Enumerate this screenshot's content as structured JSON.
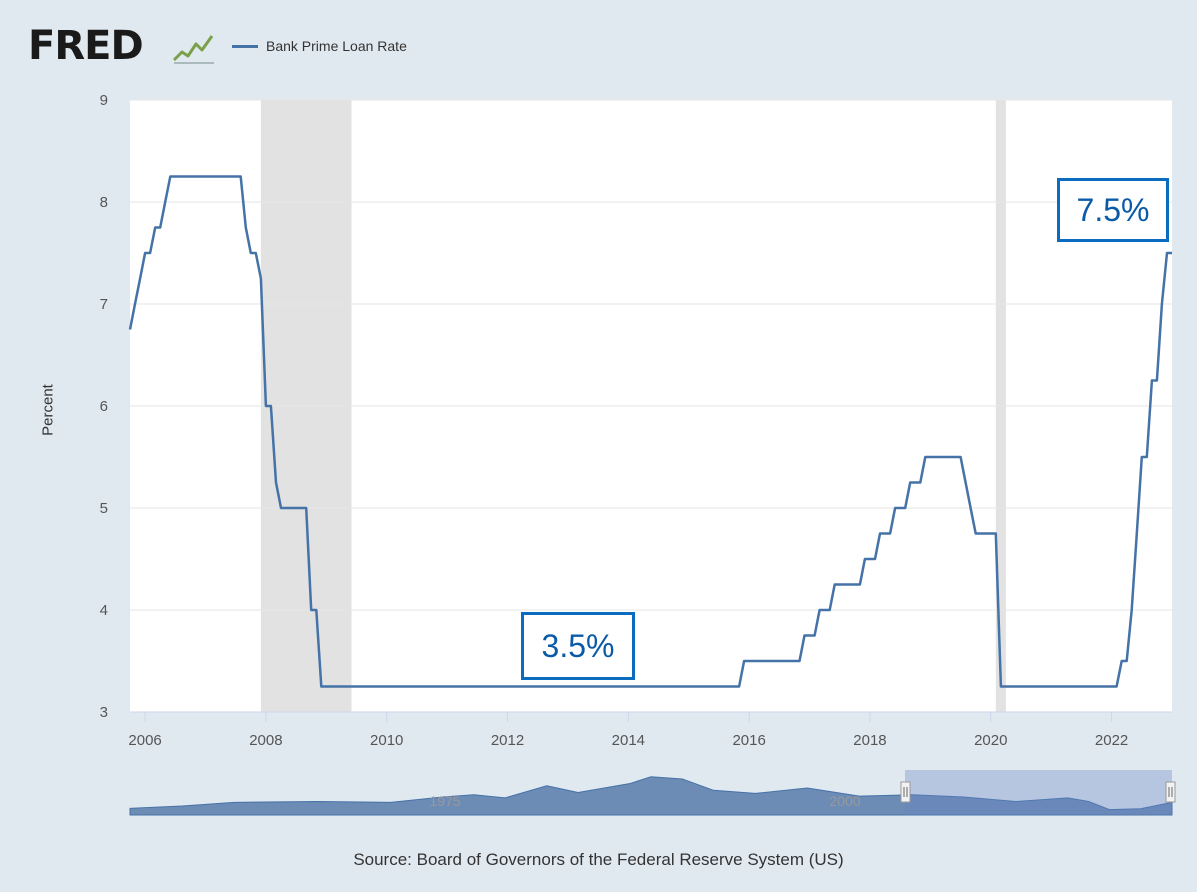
{
  "header": {
    "logo_text": "FRED",
    "logo_icon": "fred-trend-graph-icon",
    "legend_label": "Bank Prime Loan Rate",
    "legend_color": "#4572a7"
  },
  "source": "Source: Board of Governors of the Federal Reserve System (US)",
  "callouts": {
    "low": "3.5%",
    "high": "7.5%",
    "border_color": "#0b6cbf"
  },
  "navigator": {
    "labels": [
      "1975",
      "2000"
    ],
    "selected_range": [
      "2005-10",
      "2023-01"
    ]
  },
  "chart_data": {
    "type": "line",
    "title": "",
    "xlabel": "",
    "ylabel": "Percent",
    "ylim": [
      3,
      9
    ],
    "xlim": [
      "2005-10",
      "2023-01"
    ],
    "yticks": [
      3,
      4,
      5,
      6,
      7,
      8,
      9
    ],
    "xticks": [
      "2006",
      "2008",
      "2010",
      "2012",
      "2014",
      "2016",
      "2018",
      "2020",
      "2022"
    ],
    "grid": "horizontal",
    "legend_placement": "top-left",
    "recessions": [
      [
        "2007-12",
        "2009-06"
      ],
      [
        "2020-02",
        "2020-04"
      ]
    ],
    "series": [
      {
        "name": "Bank Prime Loan Rate",
        "color": "#4572a7",
        "points": [
          [
            "2005-10",
            6.75
          ],
          [
            "2005-11",
            7.0
          ],
          [
            "2005-12",
            7.25
          ],
          [
            "2006-01",
            7.5
          ],
          [
            "2006-02",
            7.5
          ],
          [
            "2006-03",
            7.75
          ],
          [
            "2006-04",
            7.75
          ],
          [
            "2006-05",
            8.0
          ],
          [
            "2006-06",
            8.25
          ],
          [
            "2007-08",
            8.25
          ],
          [
            "2007-09",
            7.75
          ],
          [
            "2007-10",
            7.5
          ],
          [
            "2007-11",
            7.5
          ],
          [
            "2007-12",
            7.25
          ],
          [
            "2008-01",
            6.0
          ],
          [
            "2008-02",
            6.0
          ],
          [
            "2008-03",
            5.25
          ],
          [
            "2008-04",
            5.0
          ],
          [
            "2008-09",
            5.0
          ],
          [
            "2008-10",
            4.0
          ],
          [
            "2008-11",
            4.0
          ],
          [
            "2008-12",
            3.25
          ],
          [
            "2015-11",
            3.25
          ],
          [
            "2015-12",
            3.5
          ],
          [
            "2016-11",
            3.5
          ],
          [
            "2016-12",
            3.75
          ],
          [
            "2017-02",
            3.75
          ],
          [
            "2017-03",
            4.0
          ],
          [
            "2017-05",
            4.0
          ],
          [
            "2017-06",
            4.25
          ],
          [
            "2017-11",
            4.25
          ],
          [
            "2017-12",
            4.5
          ],
          [
            "2018-02",
            4.5
          ],
          [
            "2018-03",
            4.75
          ],
          [
            "2018-05",
            4.75
          ],
          [
            "2018-06",
            5.0
          ],
          [
            "2018-08",
            5.0
          ],
          [
            "2018-09",
            5.25
          ],
          [
            "2018-11",
            5.25
          ],
          [
            "2018-12",
            5.5
          ],
          [
            "2019-07",
            5.5
          ],
          [
            "2019-08",
            5.25
          ],
          [
            "2019-09",
            5.0
          ],
          [
            "2019-10",
            4.75
          ],
          [
            "2020-02",
            4.75
          ],
          [
            "2020-03",
            3.25
          ],
          [
            "2022-02",
            3.25
          ],
          [
            "2022-03",
            3.5
          ],
          [
            "2022-04",
            3.5
          ],
          [
            "2022-05",
            4.0
          ],
          [
            "2022-06",
            4.75
          ],
          [
            "2022-07",
            5.5
          ],
          [
            "2022-08",
            5.5
          ],
          [
            "2022-09",
            6.25
          ],
          [
            "2022-10",
            6.25
          ],
          [
            "2022-11",
            7.0
          ],
          [
            "2022-12",
            7.5
          ],
          [
            "2023-01",
            7.5
          ]
        ]
      }
    ]
  }
}
